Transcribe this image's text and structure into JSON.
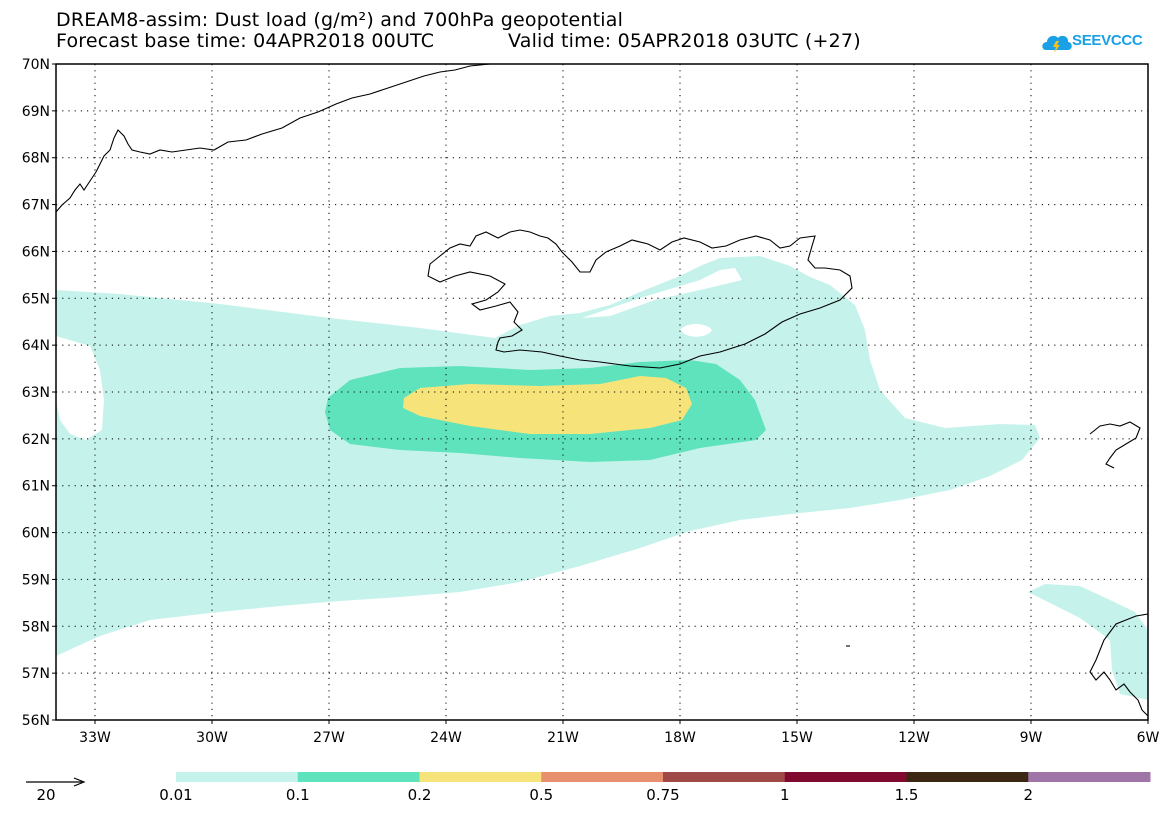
{
  "titles": {
    "line1": "DREAM8-assim: Dust load (g/m²) and 700hPa geopotential",
    "line2_left": "Forecast base time: 04APR2018 00UTC",
    "line2_right": "Valid time: 05APR2018 03UTC (+27)"
  },
  "logo": {
    "text": "SEEVCCC",
    "icon": "cloud-icon",
    "color": "#1aa0e6"
  },
  "map": {
    "lat_labels": [
      "70N",
      "69N",
      "68N",
      "67N",
      "66N",
      "65N",
      "64N",
      "63N",
      "62N",
      "61N",
      "60N",
      "59N",
      "58N",
      "57N",
      "56N"
    ],
    "lon_labels": [
      "33W",
      "30W",
      "27W",
      "24W",
      "21W",
      "18W",
      "15W",
      "12W",
      "9W",
      "6W"
    ],
    "grid": "dotted",
    "ocean_color": "#ffffff",
    "land_outline": "#000000"
  },
  "legend": {
    "vector_label": "20",
    "bins": [
      {
        "color": "#c6f2ec"
      },
      {
        "color": "#5fe3bd"
      },
      {
        "color": "#f6e47a"
      },
      {
        "color": "#e8906e"
      },
      {
        "color": "#a04a48"
      },
      {
        "color": "#800a30"
      },
      {
        "color": "#3c2614"
      },
      {
        "color": "#9f74a6"
      }
    ],
    "thresholds": [
      "0.01",
      "0.1",
      "0.2",
      "0.5",
      "0.75",
      "1",
      "1.5",
      "2"
    ]
  },
  "colors": {
    "dust_low": "#c6f2ec",
    "dust_mid": "#5fe3bd",
    "dust_high": "#f6e47a"
  }
}
